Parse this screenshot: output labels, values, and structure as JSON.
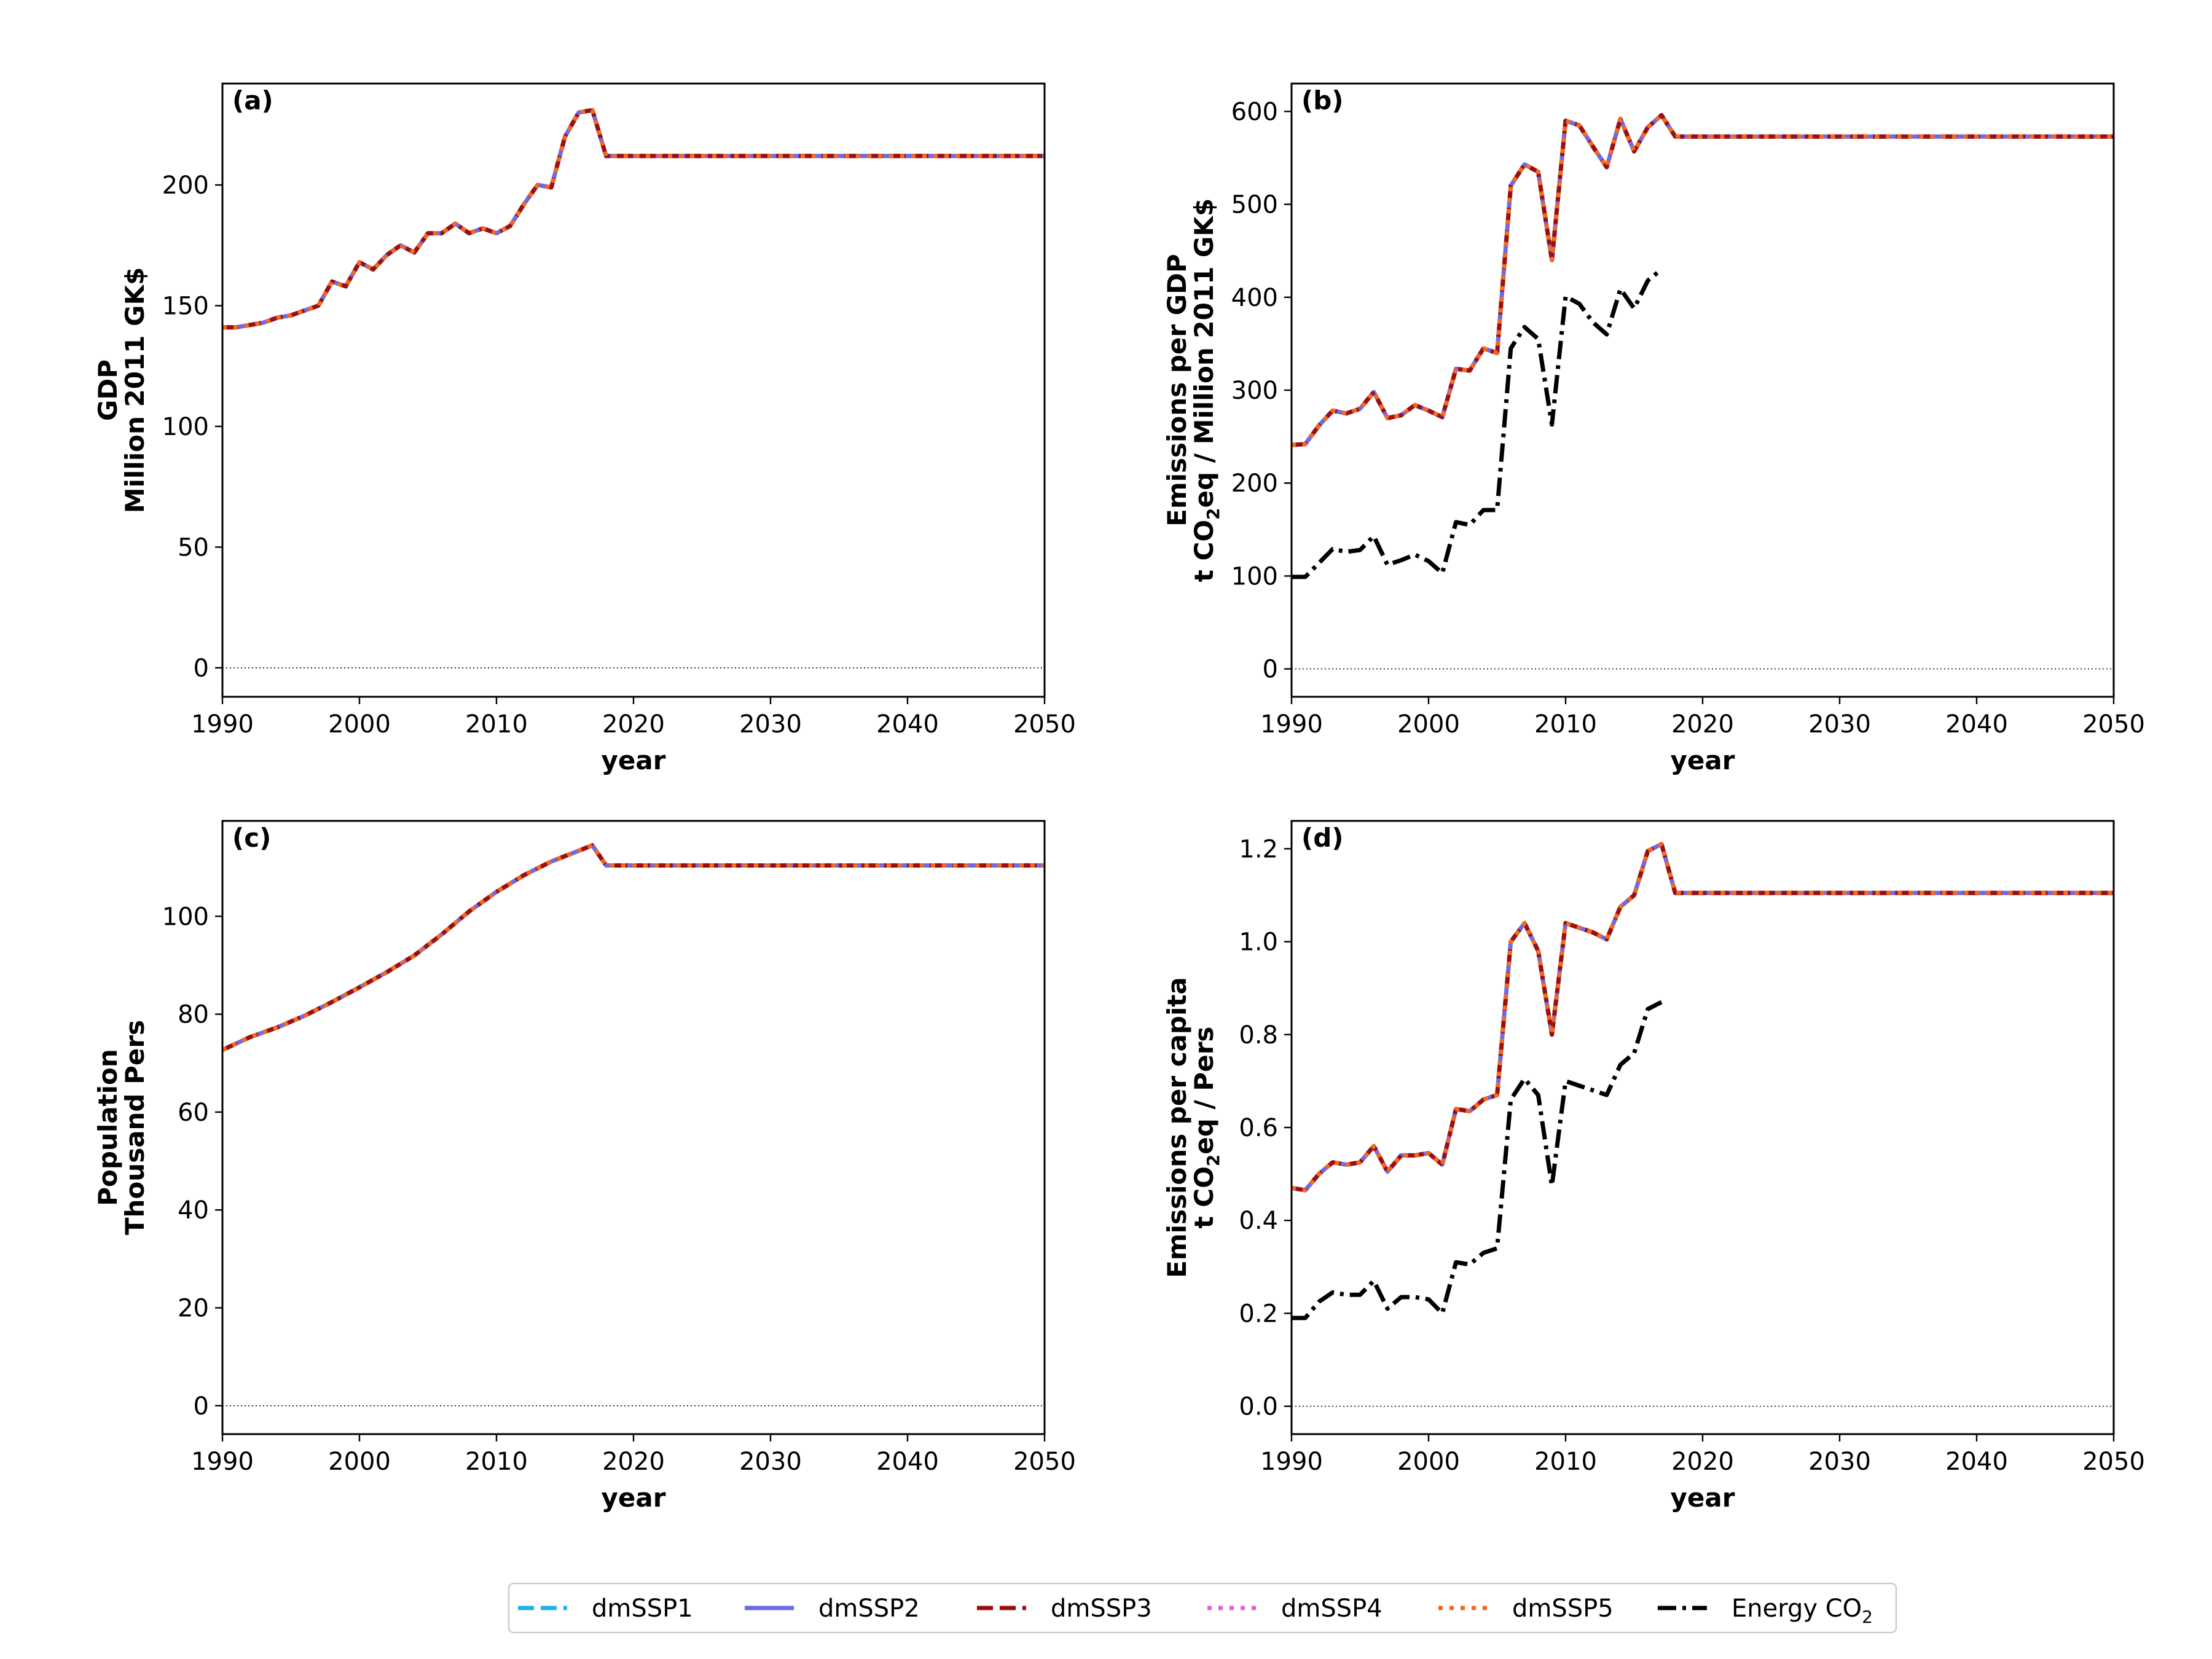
{
  "legend": {
    "entries": [
      {
        "key": "dmSSP1",
        "label": "dmSSP1",
        "color": "#1fb4e6",
        "dash": "dashed"
      },
      {
        "key": "dmSSP2",
        "label": "dmSSP2",
        "color": "#6b6bea",
        "dash": "solid"
      },
      {
        "key": "dmSSP3",
        "label": "dmSSP3",
        "color": "#9a1010",
        "dash": "dashed"
      },
      {
        "key": "dmSSP4",
        "label": "dmSSP4",
        "color": "#e060e0",
        "dash": "dotted"
      },
      {
        "key": "dmSSP5",
        "label": "dmSSP5",
        "color": "#f06a20",
        "dash": "dotted"
      },
      {
        "key": "energy",
        "label": "Energy CO",
        "sub": "2",
        "color": "#000000",
        "dash": "dashdot"
      }
    ]
  },
  "chart_data": [
    {
      "type": "line",
      "panel_label": "(a)",
      "ylabel_lines": [
        {
          "text": "GDP"
        },
        {
          "text": "Million 2011 GK$"
        }
      ],
      "xlabel": "year",
      "xlim": [
        1990,
        2050
      ],
      "ylim": [
        -12,
        242
      ],
      "xticks": [
        1990,
        2000,
        2010,
        2020,
        2030,
        2040,
        2050
      ],
      "yticks": [
        0,
        50,
        100,
        150,
        200
      ],
      "zero_line": true,
      "series": [
        {
          "ssp": true,
          "x": [
            1990,
            1991,
            1992,
            1993,
            1994,
            1995,
            1996,
            1997,
            1998,
            1999,
            2000,
            2001,
            2002,
            2003,
            2004,
            2005,
            2006,
            2007,
            2008,
            2009,
            2010,
            2011,
            2012,
            2013,
            2014,
            2015,
            2016,
            2017,
            2018,
            2050
          ],
          "values": [
            141,
            141,
            142,
            143,
            145,
            146,
            148,
            150,
            160,
            158,
            168,
            165,
            171,
            175,
            172,
            180,
            180,
            184,
            180,
            182,
            180,
            183,
            192,
            200,
            199,
            220,
            230,
            231,
            212,
            212
          ]
        }
      ]
    },
    {
      "type": "line",
      "panel_label": "(b)",
      "ylabel_lines": [
        {
          "text": "Emissions per GDP"
        },
        {
          "text": "t CO",
          "sub": "2",
          "tail": "eq / Million 2011 GK$"
        }
      ],
      "xlabel": "year",
      "xlim": [
        1990,
        2050
      ],
      "ylim": [
        -30,
        630
      ],
      "xticks": [
        1990,
        2000,
        2010,
        2020,
        2030,
        2040,
        2050
      ],
      "yticks": [
        0,
        100,
        200,
        300,
        400,
        500,
        600
      ],
      "zero_line": true,
      "series": [
        {
          "ssp": true,
          "x": [
            1990,
            1991,
            1992,
            1993,
            1994,
            1995,
            1996,
            1997,
            1998,
            1999,
            2000,
            2001,
            2002,
            2003,
            2004,
            2005,
            2006,
            2007,
            2008,
            2009,
            2010,
            2011,
            2012,
            2013,
            2014,
            2015,
            2016,
            2017,
            2018,
            2050
          ],
          "values": [
            241,
            242,
            262,
            278,
            275,
            280,
            298,
            270,
            273,
            284,
            278,
            271,
            323,
            321,
            345,
            340,
            520,
            543,
            535,
            440,
            590,
            585,
            562,
            540,
            592,
            557,
            583,
            596,
            573,
            573
          ]
        },
        {
          "name": "Energy CO2",
          "x": [
            1990,
            1991,
            1992,
            1993,
            1994,
            1995,
            1996,
            1997,
            1998,
            1999,
            2000,
            2001,
            2002,
            2003,
            2004,
            2005,
            2006,
            2007,
            2008,
            2009,
            2010,
            2011,
            2012,
            2013,
            2014,
            2015,
            2016,
            2017
          ],
          "values": [
            99,
            99,
            114,
            129,
            126,
            128,
            143,
            112,
            117,
            123,
            116,
            103,
            158,
            155,
            171,
            171,
            345,
            368,
            355,
            263,
            401,
            393,
            373,
            360,
            409,
            388,
            418,
            430
          ]
        }
      ]
    },
    {
      "type": "line",
      "panel_label": "(c)",
      "ylabel_lines": [
        {
          "text": "Population"
        },
        {
          "text": "Thousand Pers"
        }
      ],
      "xlabel": "year",
      "xlim": [
        1990,
        2050
      ],
      "ylim": [
        -5.8,
        119.5
      ],
      "xticks": [
        1990,
        2000,
        2010,
        2020,
        2030,
        2040,
        2050
      ],
      "yticks": [
        0,
        20,
        40,
        60,
        80,
        100
      ],
      "zero_line": true,
      "series": [
        {
          "ssp": true,
          "x": [
            1990,
            1992,
            1994,
            1996,
            1998,
            2000,
            2002,
            2004,
            2006,
            2008,
            2010,
            2012,
            2014,
            2016,
            2017,
            2018,
            2050
          ],
          "values": [
            72.7,
            75.3,
            77.3,
            79.7,
            82.5,
            85.5,
            88.6,
            92.0,
            96.3,
            101.0,
            105.0,
            108.4,
            111.2,
            113.4,
            114.5,
            110.4,
            110.4
          ]
        }
      ]
    },
    {
      "type": "line",
      "panel_label": "(d)",
      "ylabel_lines": [
        {
          "text": "Emissions per capita"
        },
        {
          "text": "t CO",
          "sub": "2",
          "tail": "eq /  Pers"
        }
      ],
      "xlabel": "year",
      "xlim": [
        1990,
        2050
      ],
      "ylim": [
        -0.06,
        1.26
      ],
      "xticks": [
        1990,
        2000,
        2010,
        2020,
        2030,
        2040,
        2050
      ],
      "yticks": [
        0.0,
        0.2,
        0.4,
        0.6,
        0.8,
        1.0,
        1.2
      ],
      "ytick_decimals": 1,
      "zero_line": true,
      "series": [
        {
          "ssp": true,
          "x": [
            1990,
            1991,
            1992,
            1993,
            1994,
            1995,
            1996,
            1997,
            1998,
            1999,
            2000,
            2001,
            2002,
            2003,
            2004,
            2005,
            2006,
            2007,
            2008,
            2009,
            2010,
            2011,
            2012,
            2013,
            2014,
            2015,
            2016,
            2017,
            2018,
            2050
          ],
          "values": [
            0.47,
            0.465,
            0.5,
            0.525,
            0.52,
            0.525,
            0.56,
            0.505,
            0.54,
            0.54,
            0.545,
            0.52,
            0.64,
            0.635,
            0.66,
            0.67,
            1.0,
            1.04,
            0.98,
            0.8,
            1.04,
            1.03,
            1.02,
            1.005,
            1.075,
            1.1,
            1.195,
            1.21,
            1.105,
            1.105
          ]
        },
        {
          "name": "Energy CO2",
          "x": [
            1990,
            1991,
            1992,
            1993,
            1994,
            1995,
            1996,
            1997,
            1998,
            1999,
            2000,
            2001,
            2002,
            2003,
            2004,
            2005,
            2006,
            2007,
            2008,
            2009,
            2010,
            2011,
            2012,
            2013,
            2014,
            2015,
            2016,
            2017
          ],
          "values": [
            0.19,
            0.19,
            0.225,
            0.245,
            0.24,
            0.24,
            0.27,
            0.21,
            0.235,
            0.235,
            0.23,
            0.2,
            0.31,
            0.305,
            0.33,
            0.34,
            0.66,
            0.705,
            0.67,
            0.475,
            0.7,
            0.69,
            0.68,
            0.67,
            0.735,
            0.76,
            0.855,
            0.87
          ]
        }
      ]
    }
  ]
}
